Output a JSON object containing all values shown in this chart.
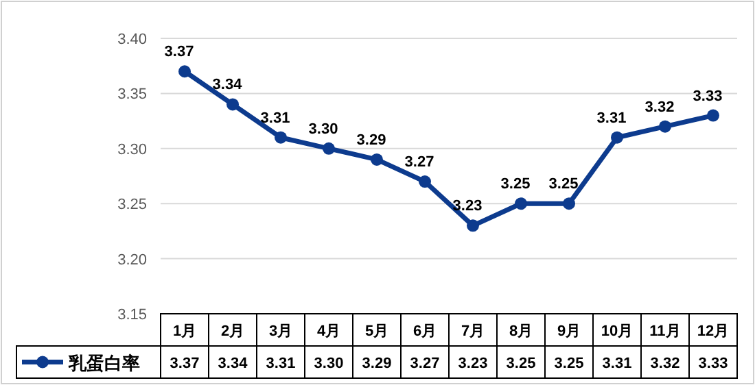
{
  "chart_data": {
    "type": "line",
    "categories": [
      "1月",
      "2月",
      "3月",
      "4月",
      "5月",
      "6月",
      "7月",
      "8月",
      "9月",
      "10月",
      "11月",
      "12月"
    ],
    "series": [
      {
        "name": "乳蛋白率",
        "color": "#0d3b8e",
        "values": [
          3.37,
          3.34,
          3.31,
          3.3,
          3.29,
          3.27,
          3.23,
          3.25,
          3.25,
          3.31,
          3.32,
          3.33
        ],
        "value_labels": [
          "3.37",
          "3.34",
          "3.31",
          "3.30",
          "3.29",
          "3.27",
          "3.23",
          "3.25",
          "3.25",
          "3.31",
          "3.32",
          "3.33"
        ]
      }
    ],
    "ylim": [
      3.15,
      3.4
    ],
    "yticks": [
      {
        "value": 3.15,
        "label": "3.15"
      },
      {
        "value": 3.2,
        "label": "3.20"
      },
      {
        "value": 3.25,
        "label": "3.25"
      },
      {
        "value": 3.3,
        "label": "3.30"
      },
      {
        "value": 3.35,
        "label": "3.35"
      },
      {
        "value": 3.4,
        "label": "3.40"
      }
    ],
    "grid": "y",
    "legend": "bottom",
    "marker": "circle",
    "line_style": "solid"
  }
}
